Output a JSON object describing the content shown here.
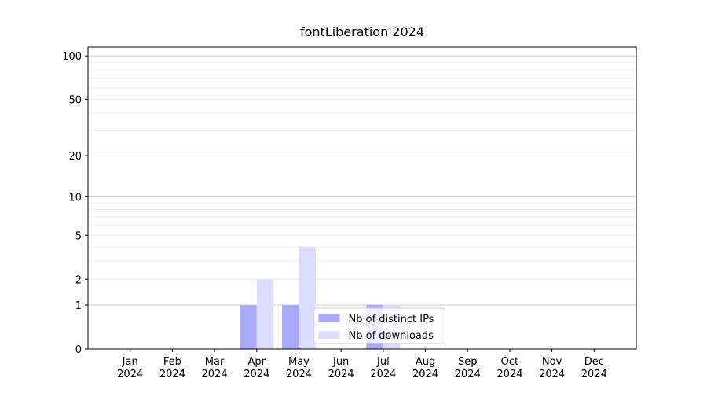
{
  "chart_data": {
    "type": "bar",
    "title": "fontLiberation 2024",
    "categories": [
      "Jan 2024",
      "Feb 2024",
      "Mar 2024",
      "Apr 2024",
      "May 2024",
      "Jun 2024",
      "Jul 2024",
      "Aug 2024",
      "Sep 2024",
      "Oct 2024",
      "Nov 2024",
      "Dec 2024"
    ],
    "series": [
      {
        "name": "Nb of distinct IPs",
        "color": "#aaaaff",
        "values": [
          0,
          0,
          0,
          1,
          1,
          0,
          1,
          0,
          0,
          0,
          0,
          0
        ]
      },
      {
        "name": "Nb of downloads",
        "color": "#ddddff",
        "values": [
          0,
          0,
          0,
          2,
          4,
          0,
          1,
          0,
          0,
          0,
          0,
          0
        ]
      }
    ],
    "yscale": "log1p",
    "ylim": [
      0,
      115
    ],
    "yticks": [
      0,
      1,
      2,
      5,
      10,
      20,
      50,
      100
    ],
    "minor_yticks": [
      3,
      4,
      6,
      7,
      8,
      9,
      30,
      40,
      60,
      70,
      80,
      90
    ],
    "grid": true,
    "legend": "lower center"
  }
}
